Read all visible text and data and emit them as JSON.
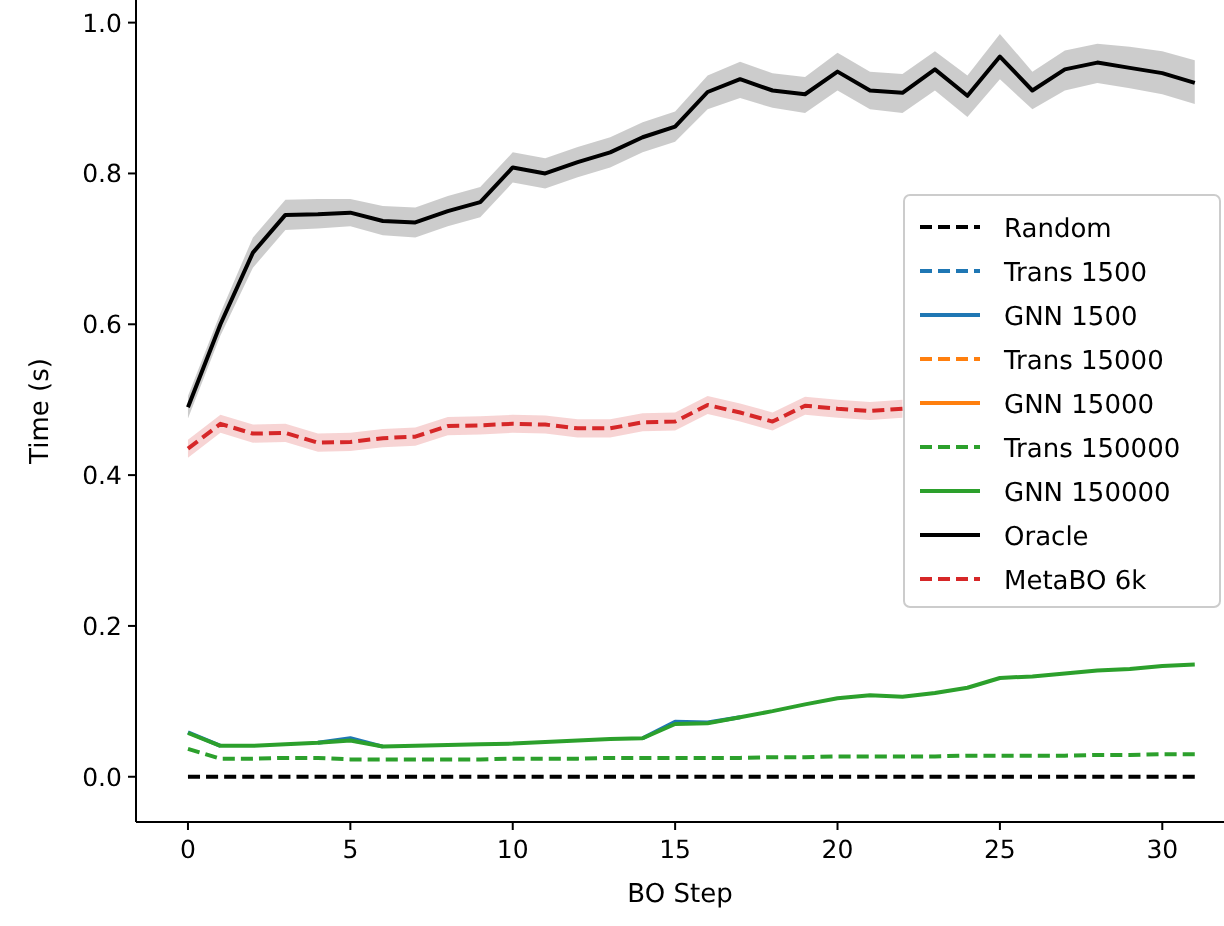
{
  "chart_data": {
    "type": "line",
    "xlabel": "BO Step",
    "ylabel": "Time (s)",
    "x": [
      0,
      1,
      2,
      3,
      4,
      5,
      6,
      7,
      8,
      9,
      10,
      11,
      12,
      13,
      14,
      15,
      16,
      17,
      18,
      19,
      20,
      21,
      22,
      23,
      24,
      25,
      26,
      27,
      28,
      29,
      30,
      31
    ],
    "xlim": [
      -1.6,
      31.9
    ],
    "ylim": [
      -0.06,
      1.03
    ],
    "xticks": [
      0,
      5,
      10,
      15,
      20,
      25,
      30
    ],
    "yticks": [
      {
        "value": 0,
        "label": "0.0"
      },
      {
        "value": 0.2,
        "label": "0.2"
      },
      {
        "value": 0.4,
        "label": "0.4"
      },
      {
        "value": 0.6,
        "label": "0.6"
      },
      {
        "value": 0.8,
        "label": "0.8"
      },
      {
        "value": 1,
        "label": "1.0"
      }
    ],
    "grid": false,
    "legend": "right",
    "marker": "none",
    "series": [
      {
        "name": "Random",
        "color": "#000000",
        "line_style": "dashed",
        "values": [
          0,
          0,
          0,
          0,
          0,
          0,
          0,
          0,
          0,
          0,
          0,
          0,
          0,
          0,
          0,
          0,
          0,
          0,
          0,
          0,
          0,
          0,
          0,
          0,
          0,
          0,
          0,
          0,
          0,
          0,
          0,
          0
        ]
      },
      {
        "name": "Trans 1500",
        "color": "#1f77b4",
        "line_style": "dashed",
        "values": [
          null,
          null,
          null,
          null,
          null,
          null,
          null,
          null,
          null,
          null,
          null,
          null,
          null,
          null,
          null,
          null,
          null,
          null,
          null,
          null,
          null,
          null,
          null,
          null,
          null,
          null,
          null,
          null,
          null,
          null,
          null,
          null
        ]
      },
      {
        "name": "GNN 1500",
        "color": "#1f77b4",
        "line_style": "solid",
        "values": [
          0.059,
          0.041,
          null,
          null,
          0.045,
          0.051,
          0.04,
          null,
          null,
          null,
          null,
          null,
          null,
          null,
          0.051,
          0.073,
          0.072,
          0.079,
          null,
          null,
          null,
          null,
          null,
          null,
          null,
          null,
          null,
          null,
          null,
          null,
          null,
          null
        ]
      },
      {
        "name": "Trans 15000",
        "color": "#ff7f0e",
        "line_style": "dashed",
        "values": [
          null,
          null,
          null,
          null,
          null,
          null,
          null,
          null,
          null,
          null,
          null,
          null,
          null,
          null,
          null,
          null,
          null,
          null,
          null,
          null,
          null,
          null,
          null,
          null,
          null,
          null,
          null,
          null,
          null,
          null,
          null,
          null
        ]
      },
      {
        "name": "GNN 15000",
        "color": "#ff7f0e",
        "line_style": "solid",
        "values": [
          null,
          null,
          null,
          null,
          null,
          null,
          null,
          null,
          null,
          null,
          null,
          null,
          null,
          null,
          null,
          null,
          null,
          null,
          null,
          null,
          null,
          null,
          null,
          null,
          null,
          null,
          null,
          null,
          null,
          null,
          null,
          null
        ]
      },
      {
        "name": "Trans 150000",
        "color": "#2ca02c",
        "line_style": "dashed",
        "values": [
          0.037,
          0.024,
          0.024,
          0.025,
          0.025,
          0.023,
          0.023,
          0.023,
          0.023,
          0.023,
          0.024,
          0.024,
          0.024,
          0.025,
          0.025,
          0.025,
          0.025,
          0.025,
          0.026,
          0.026,
          0.027,
          0.027,
          0.027,
          0.027,
          0.028,
          0.028,
          0.028,
          0.028,
          0.029,
          0.029,
          0.03,
          0.03
        ]
      },
      {
        "name": "GNN 150000",
        "color": "#2ca02c",
        "line_style": "solid",
        "values": [
          0.058,
          0.041,
          0.041,
          0.043,
          0.045,
          0.048,
          0.04,
          0.041,
          0.042,
          0.043,
          0.044,
          0.046,
          0.048,
          0.05,
          0.051,
          0.07,
          0.071,
          0.079,
          0.087,
          0.096,
          0.104,
          0.108,
          0.106,
          0.111,
          0.118,
          0.131,
          0.133,
          0.137,
          0.141,
          0.143,
          0.147,
          0.149
        ]
      },
      {
        "name": "Oracle",
        "color": "#000000",
        "line_style": "solid",
        "values": [
          0.49,
          0.6,
          0.695,
          0.745,
          0.746,
          0.748,
          0.737,
          0.735,
          0.75,
          0.762,
          0.808,
          0.8,
          0.815,
          0.828,
          0.848,
          0.862,
          0.908,
          0.925,
          0.91,
          0.905,
          0.935,
          0.91,
          0.907,
          0.938,
          0.903,
          0.955,
          0.91,
          0.938,
          0.947,
          0.94,
          0.933,
          0.92
        ],
        "lower": [
          0.475,
          0.585,
          0.675,
          0.725,
          0.727,
          0.73,
          0.718,
          0.715,
          0.73,
          0.742,
          0.788,
          0.78,
          0.795,
          0.808,
          0.828,
          0.842,
          0.885,
          0.9,
          0.887,
          0.88,
          0.91,
          0.885,
          0.88,
          0.91,
          0.875,
          0.925,
          0.885,
          0.91,
          0.92,
          0.913,
          0.905,
          0.892
        ],
        "upper": [
          0.505,
          0.615,
          0.715,
          0.765,
          0.766,
          0.766,
          0.757,
          0.755,
          0.77,
          0.782,
          0.828,
          0.82,
          0.835,
          0.848,
          0.868,
          0.882,
          0.93,
          0.948,
          0.933,
          0.928,
          0.96,
          0.935,
          0.932,
          0.962,
          0.93,
          0.985,
          0.935,
          0.963,
          0.972,
          0.968,
          0.962,
          0.95
        ]
      },
      {
        "name": "MetaBO 6k",
        "color": "#d62728",
        "line_style": "dashed",
        "values": [
          0.435,
          0.468,
          0.455,
          0.456,
          0.443,
          0.444,
          0.449,
          0.451,
          0.465,
          0.466,
          0.468,
          0.467,
          0.462,
          0.462,
          0.47,
          0.471,
          0.493,
          0.483,
          0.471,
          0.492,
          0.488,
          0.485,
          0.488,
          null,
          null,
          null,
          null,
          null,
          null,
          null,
          null,
          null
        ],
        "lower": [
          0.423,
          0.456,
          0.443,
          0.444,
          0.431,
          0.432,
          0.437,
          0.439,
          0.453,
          0.454,
          0.456,
          0.455,
          0.45,
          0.45,
          0.458,
          0.459,
          0.481,
          0.471,
          0.459,
          0.48,
          0.476,
          0.473,
          0.476,
          null,
          null,
          null,
          null,
          null,
          null,
          null,
          null,
          null
        ],
        "upper": [
          0.447,
          0.48,
          0.467,
          0.468,
          0.455,
          0.456,
          0.461,
          0.463,
          0.477,
          0.478,
          0.48,
          0.479,
          0.474,
          0.474,
          0.482,
          0.483,
          0.505,
          0.495,
          0.483,
          0.504,
          0.5,
          0.497,
          0.5,
          null,
          null,
          null,
          null,
          null,
          null,
          null,
          null,
          null
        ]
      }
    ]
  }
}
